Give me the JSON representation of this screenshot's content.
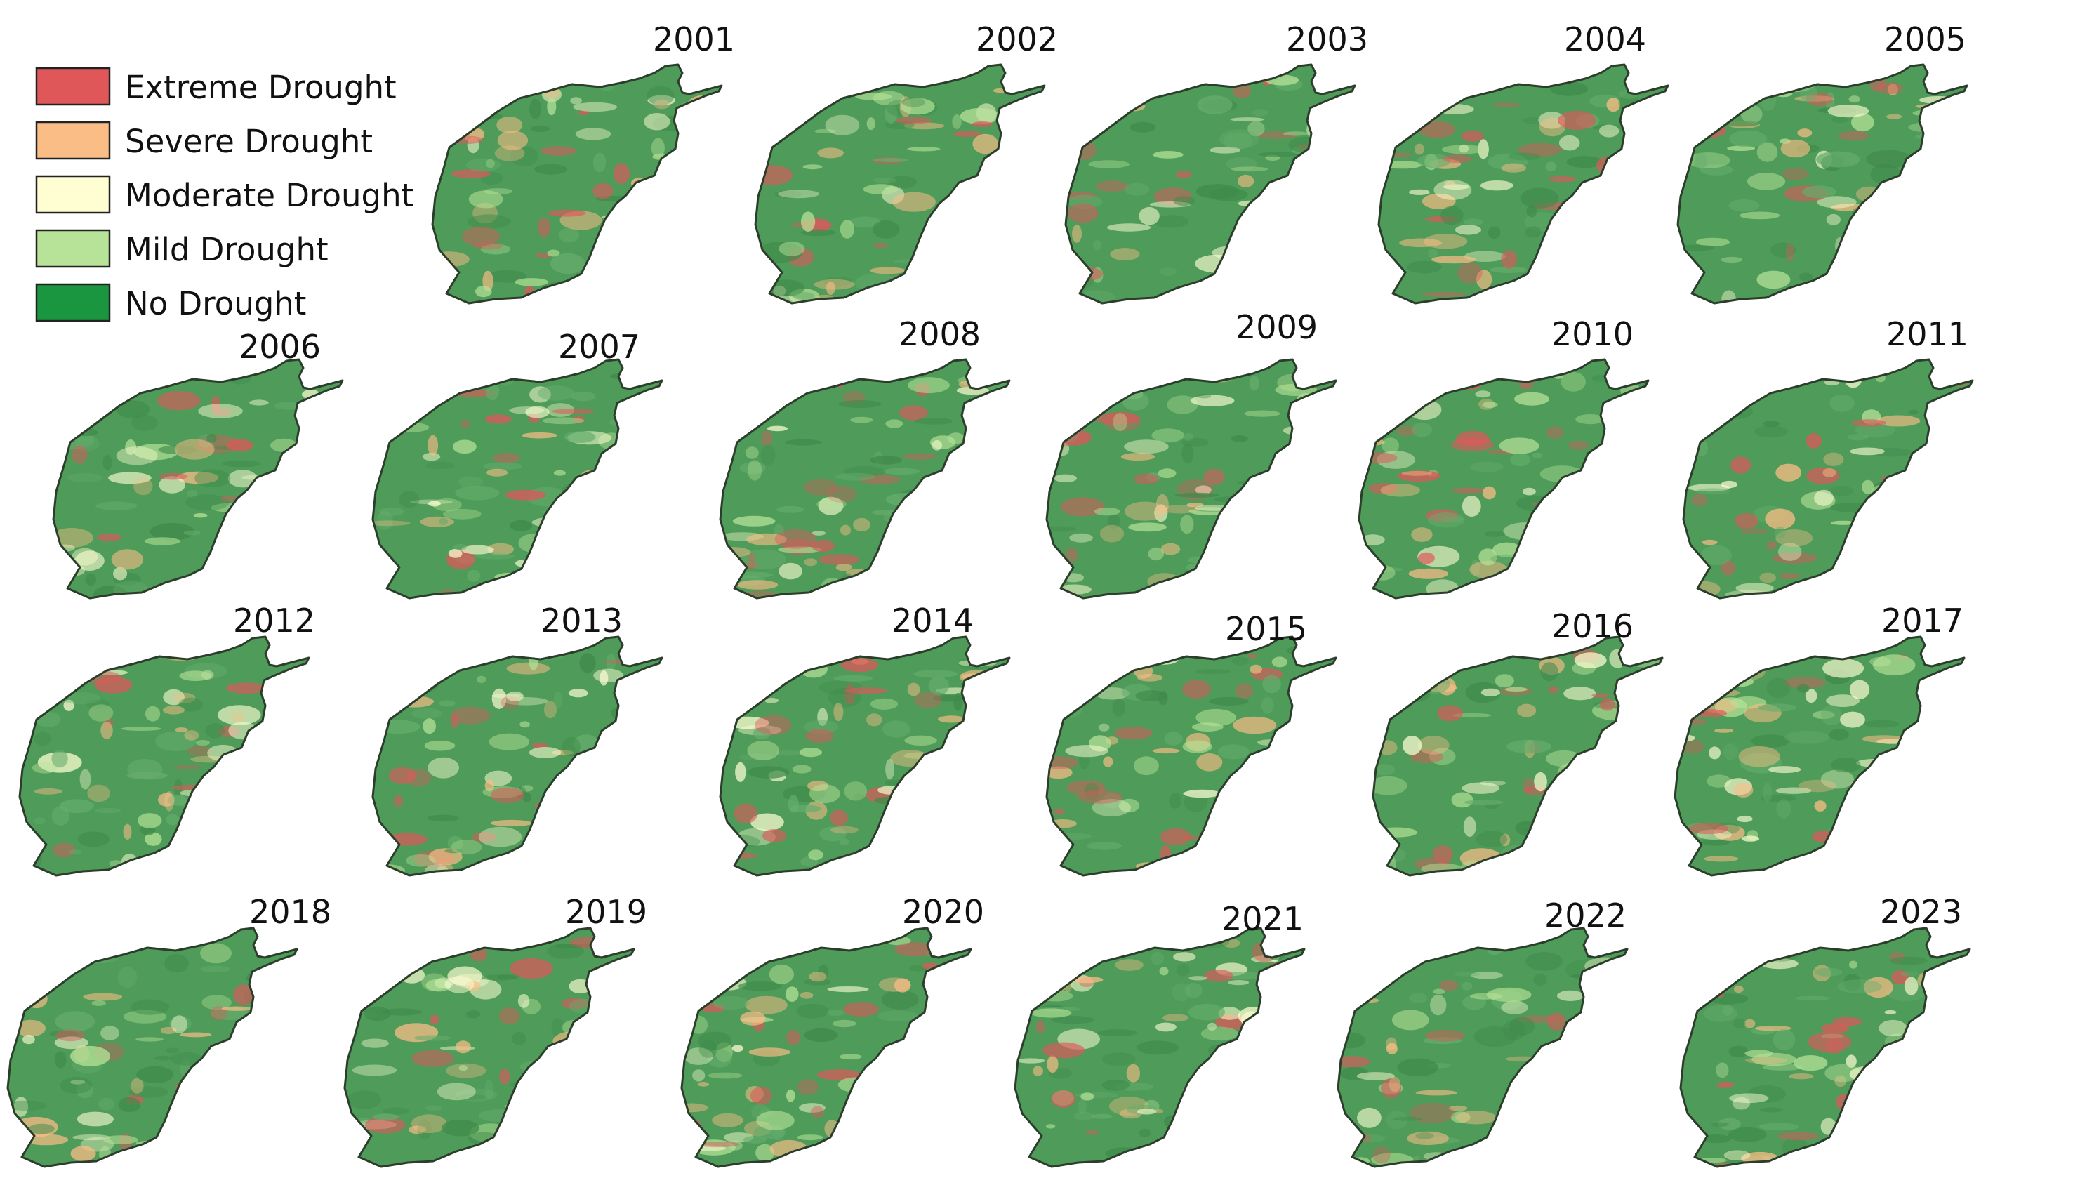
{
  "legend": {
    "items": [
      {
        "label": "Extreme Drought",
        "color": "#e0575a"
      },
      {
        "label": "Severe Drought",
        "color": "#fbbd86"
      },
      {
        "label": "Moderate Drought",
        "color": "#fefed2"
      },
      {
        "label": "Mild Drought",
        "color": "#b7e398"
      },
      {
        "label": "No Drought",
        "color": "#1a9641"
      }
    ]
  },
  "base_color": "#4e9b5a",
  "panels": [
    {
      "year": "2001"
    },
    {
      "year": "2002"
    },
    {
      "year": "2003"
    },
    {
      "year": "2004"
    },
    {
      "year": "2005"
    },
    {
      "year": "2006"
    },
    {
      "year": "2007"
    },
    {
      "year": "2008"
    },
    {
      "year": "2009"
    },
    {
      "year": "2010"
    },
    {
      "year": "2011"
    },
    {
      "year": "2012"
    },
    {
      "year": "2013"
    },
    {
      "year": "2014"
    },
    {
      "year": "2015"
    },
    {
      "year": "2016"
    },
    {
      "year": "2017"
    },
    {
      "year": "2018"
    },
    {
      "year": "2019"
    },
    {
      "year": "2020"
    },
    {
      "year": "2021"
    },
    {
      "year": "2022"
    },
    {
      "year": "2023"
    }
  ]
}
